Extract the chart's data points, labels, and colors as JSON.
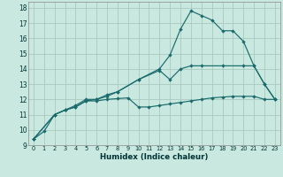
{
  "bg_color": "#c8e8e0",
  "grid_color": "#a8c8c0",
  "line_color": "#1a6b6b",
  "xlabel": "Humidex (Indice chaleur)",
  "xlim": [
    -0.5,
    23.5
  ],
  "ylim": [
    9,
    18.4
  ],
  "xticks": [
    0,
    1,
    2,
    3,
    4,
    5,
    6,
    7,
    8,
    9,
    10,
    11,
    12,
    13,
    14,
    15,
    16,
    17,
    18,
    19,
    20,
    21,
    22,
    23
  ],
  "yticks": [
    9,
    10,
    11,
    12,
    13,
    14,
    15,
    16,
    17,
    18
  ],
  "line1_x": [
    0,
    1,
    2,
    3,
    4,
    5,
    6,
    7,
    8,
    9,
    10,
    11,
    12,
    13,
    14,
    15,
    16,
    17,
    18,
    19,
    20,
    21,
    22,
    23
  ],
  "line1_y": [
    9.4,
    9.9,
    11.0,
    11.3,
    11.5,
    11.9,
    11.9,
    12.0,
    12.05,
    12.1,
    11.5,
    11.5,
    11.6,
    11.7,
    11.8,
    11.9,
    12.0,
    12.1,
    12.15,
    12.2,
    12.2,
    12.2,
    12.0,
    12.0
  ],
  "line2_x": [
    0,
    2,
    3,
    4,
    5,
    6,
    7,
    8,
    10,
    12,
    13,
    14,
    15,
    16,
    18,
    20,
    21,
    22,
    23
  ],
  "line2_y": [
    9.4,
    11.0,
    11.3,
    11.5,
    11.9,
    12.0,
    12.3,
    12.5,
    13.3,
    13.9,
    13.3,
    14.0,
    14.2,
    14.2,
    14.2,
    14.2,
    14.2,
    13.0,
    12.0
  ],
  "line3_x": [
    0,
    2,
    3,
    4,
    5,
    6,
    7,
    8,
    10,
    12,
    13,
    14,
    15,
    16,
    17,
    18,
    19,
    20,
    21,
    22,
    23
  ],
  "line3_y": [
    9.4,
    11.0,
    11.3,
    11.6,
    12.0,
    12.0,
    12.2,
    12.5,
    13.3,
    14.0,
    14.9,
    16.6,
    17.8,
    17.5,
    17.2,
    16.5,
    16.5,
    15.8,
    14.2,
    13.0,
    12.0
  ]
}
